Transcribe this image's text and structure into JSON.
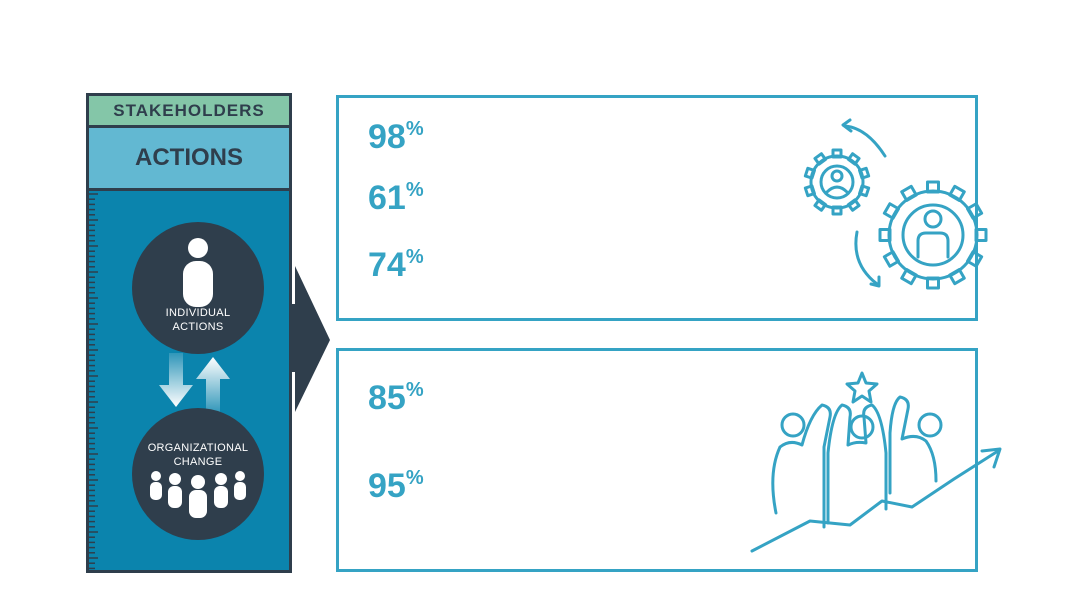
{
  "side": {
    "stakeholders_label": "STAKEHOLDERS",
    "actions_label": "ACTIONS",
    "individual_label_1": "INDIVIDUAL",
    "individual_label_2": "ACTIONS",
    "org_label_1": "ORGANIZATIONAL",
    "org_label_2": "CHANGE"
  },
  "panel_top": {
    "stats": [
      {
        "value": "98",
        "unit": "%"
      },
      {
        "value": "61",
        "unit": "%"
      },
      {
        "value": "74",
        "unit": "%"
      }
    ],
    "icon": "gears-person-cycle-icon"
  },
  "panel_bottom": {
    "stats": [
      {
        "value": "85",
        "unit": "%"
      },
      {
        "value": "95",
        "unit": "%"
      }
    ],
    "icon": "team-high-five-growth-icon"
  },
  "colors": {
    "accent": "#35a3c4",
    "dark": "#2f3e4c",
    "side_blue": "#0b84ad",
    "green_band": "#84c6a8",
    "light_band": "#62b8d2"
  }
}
